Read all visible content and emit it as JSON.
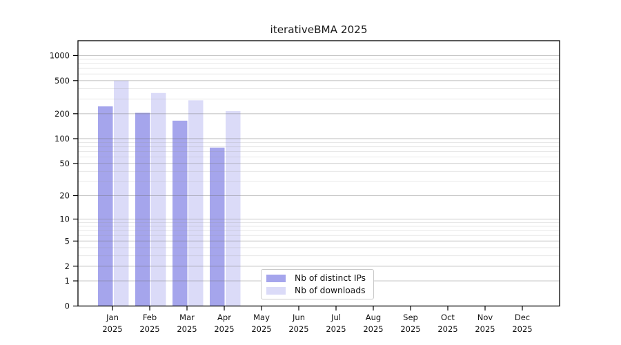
{
  "chart_data": {
    "type": "bar",
    "title": "iterativeBMA 2025",
    "y_scale": "log10(1+y)",
    "ylim": [
      0,
      1490
    ],
    "grid": true,
    "legend_position": "bottom-center-inside",
    "y_ticks": [
      0,
      1,
      2,
      5,
      10,
      20,
      50,
      100,
      200,
      500,
      1000
    ],
    "categories": [
      "Jan",
      "Feb",
      "Mar",
      "Apr",
      "May",
      "Jun",
      "Jul",
      "Aug",
      "Sep",
      "Oct",
      "Nov",
      "Dec"
    ],
    "year_label": "2025",
    "series": [
      {
        "name": "Nb of distinct IPs",
        "color": "#a5a5ec",
        "values": [
          245,
          205,
          165,
          78,
          null,
          null,
          null,
          null,
          null,
          null,
          null,
          null
        ]
      },
      {
        "name": "Nb of downloads",
        "color": "#dbdbf8",
        "values": [
          500,
          355,
          290,
          215,
          null,
          null,
          null,
          null,
          null,
          null,
          null,
          null
        ]
      }
    ]
  },
  "colors": {
    "spine": "#000000",
    "axis_text": "#111111",
    "title_text": "#1a1a1a",
    "major_grid": "rgba(110,110,110,0.38)",
    "minor_grid": "rgba(150,150,150,0.22)"
  }
}
